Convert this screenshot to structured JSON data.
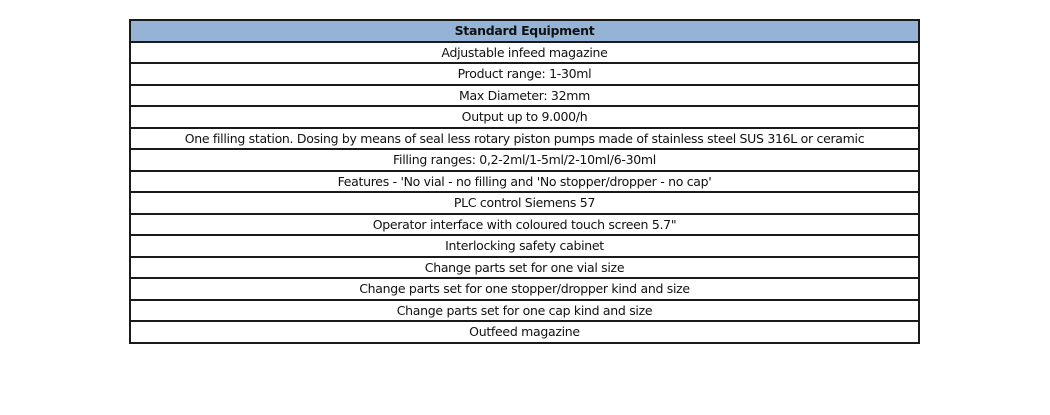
{
  "table": {
    "header": "Standard Equipment",
    "rows": [
      "Adjustable infeed magazine",
      "Product range: 1-30ml",
      "Max Diameter: 32mm",
      "Output up to 9.000/h",
      "One filling station. Dosing by means of seal less rotary piston pumps made of stainless steel SUS 316L or ceramic",
      "Filling ranges: 0,2-2ml/1-5ml/2-10ml/6-30ml",
      "Features - 'No vial  - no filling and 'No stopper/dropper - no cap'",
      "PLC control Siemens 57",
      "Operator interface with coloured touch screen 5.7\"",
      "Interlocking safety cabinet",
      "Change parts set for one vial size",
      "Change parts set for one stopper/dropper kind and size",
      "Change parts set for one cap kind and size",
      "Outfeed magazine"
    ],
    "header_color": "#95b3d7"
  }
}
